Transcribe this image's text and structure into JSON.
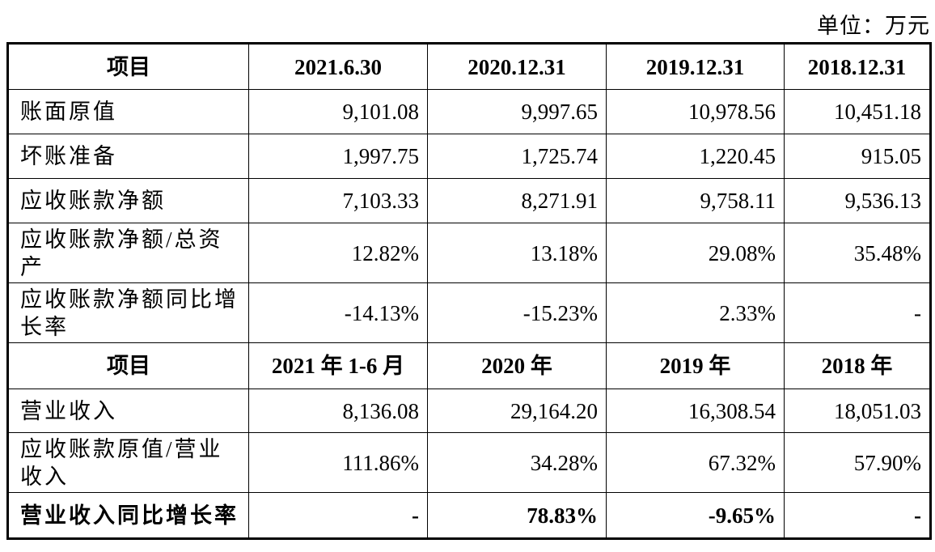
{
  "unit_label": "单位：万元",
  "header1": [
    "项目",
    "2021.6.30",
    "2020.12.31",
    "2019.12.31",
    "2018.12.31"
  ],
  "rows1": [
    {
      "label": "账面原值",
      "values": [
        "9,101.08",
        "9,997.65",
        "10,978.56",
        "10,451.18"
      ]
    },
    {
      "label": "坏账准备",
      "values": [
        "1,997.75",
        "1,725.74",
        "1,220.45",
        "915.05"
      ]
    },
    {
      "label": "应收账款净额",
      "values": [
        "7,103.33",
        "8,271.91",
        "9,758.11",
        "9,536.13"
      ]
    },
    {
      "label": "应收账款净额/总资产",
      "values": [
        "12.82%",
        "13.18%",
        "29.08%",
        "35.48%"
      ]
    },
    {
      "label": "应收账款净额同比增长率",
      "values": [
        "-14.13%",
        "-15.23%",
        "2.33%",
        "-"
      ]
    }
  ],
  "header2": [
    "项目",
    "2021 年 1-6 月",
    "2020 年",
    "2019 年",
    "2018 年"
  ],
  "rows2": [
    {
      "label": "营业收入",
      "values": [
        "8,136.08",
        "29,164.20",
        "16,308.54",
        "18,051.03"
      ]
    },
    {
      "label": "应收账款原值/营业收入",
      "values": [
        "111.86%",
        "34.28%",
        "67.32%",
        "57.90%"
      ]
    },
    {
      "label": "营业收入同比增长率",
      "values": [
        "-",
        "78.83%",
        "-9.65%",
        "-"
      ]
    }
  ]
}
